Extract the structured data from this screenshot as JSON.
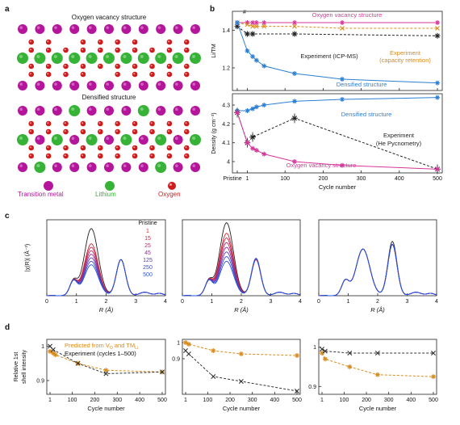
{
  "panels": {
    "a": "a",
    "b": "b",
    "c": "c",
    "d": "d"
  },
  "panel_a": {
    "top_title": "Oxygen vacancy structure",
    "bottom_title": "Densified structure",
    "legend": [
      "Transition metal",
      "Lithium",
      "Oxygen"
    ],
    "colors": {
      "tm": "#b5159a",
      "li": "#36b336",
      "o": "#d11a1a"
    }
  },
  "panel_b": {
    "top_ylabel": "Li/TM",
    "bottom_ylabel": "Density (g cm⁻³)",
    "xlabel": "Cycle number",
    "x_ticks": [
      "Pristine",
      "1",
      "100",
      "200",
      "300",
      "400",
      "500"
    ],
    "top_yticks": [
      "1.4",
      "1.2"
    ],
    "bottom_yticks": [
      "4.3",
      "4.2",
      "4.1",
      "4"
    ],
    "labels": {
      "ovs": "Oxygen vacancy structure",
      "dens": "Densified structure",
      "icp": "Experiment (ICP-MS)",
      "cap1": "Experiment",
      "cap2": "(capacity retention)",
      "he1": "Experiment",
      "he2": "(He Pycnometry)"
    }
  },
  "panel_c": {
    "ylabel": "|χ(R)| (Å⁻³)",
    "xlabel": "R (Å)",
    "x_ticks": [
      "0",
      "1",
      "2",
      "3",
      "4"
    ],
    "legend_title": "Pristine",
    "legend": [
      {
        "name": "1",
        "color": "#d9232d"
      },
      {
        "name": "15",
        "color": "#c8234a"
      },
      {
        "name": "25",
        "color": "#b7286e"
      },
      {
        "name": "45",
        "color": "#8b2f98"
      },
      {
        "name": "125",
        "color": "#5a3bb5"
      },
      {
        "name": "250",
        "color": "#3b4ccc"
      },
      {
        "name": "500",
        "color": "#2255e0"
      }
    ]
  },
  "panel_d": {
    "ylabel1": "Relative 1st",
    "ylabel2": "shell intensity",
    "xlabel": "Cycle number",
    "x_ticks": [
      "1",
      "100",
      "200",
      "300",
      "400",
      "500"
    ],
    "y_ticks": [
      "1",
      "0.9"
    ],
    "legend_pred": "Predicted from V",
    "legend_pred_sub": "O",
    "legend_pred_mid": " and TM",
    "legend_pred_sub2": "Li",
    "legend_exp": "Experiment (cycles 1–500)",
    "colors": {
      "pred": "#d88a1a",
      "exp": "#333333"
    }
  },
  "chart_data": [
    {
      "type": "line",
      "title": "",
      "ylabel": "Li/TM",
      "xlabel": "",
      "ylim": [
        1.08,
        1.5
      ],
      "series": [
        {
          "name": "Oxygen vacancy structure",
          "color": "#d6369b",
          "x": [
            0,
            1,
            15,
            25,
            45,
            125,
            250,
            500
          ],
          "y": [
            1.44,
            1.44,
            1.44,
            1.44,
            1.44,
            1.44,
            1.44,
            1.44
          ]
        },
        {
          "name": "Experiment (capacity retention)",
          "color": "#d88a1a",
          "x": [
            0,
            1,
            15,
            25,
            45,
            125,
            250,
            500
          ],
          "y": [
            1.44,
            1.43,
            1.42,
            1.42,
            1.42,
            1.42,
            1.41,
            1.41
          ]
        },
        {
          "name": "Experiment (ICP-MS)",
          "color": "#222222",
          "x": [
            0,
            1,
            15,
            125,
            500
          ],
          "y": [
            1.42,
            1.38,
            1.38,
            1.38,
            1.37
          ]
        },
        {
          "name": "Densified structure",
          "color": "#2a7fd4",
          "x": [
            0,
            1,
            15,
            25,
            45,
            125,
            250,
            500
          ],
          "y": [
            1.44,
            1.29,
            1.26,
            1.24,
            1.21,
            1.17,
            1.14,
            1.12
          ]
        }
      ]
    },
    {
      "type": "line",
      "title": "",
      "ylabel": "Density (g cm⁻³)",
      "xlabel": "Cycle number",
      "ylim": [
        3.94,
        4.36
      ],
      "xlim": [
        0,
        500
      ],
      "series": [
        {
          "name": "Densified structure",
          "color": "#2a7fd4",
          "x": [
            0,
            1,
            15,
            25,
            45,
            125,
            250,
            500
          ],
          "y": [
            4.27,
            4.27,
            4.28,
            4.29,
            4.3,
            4.32,
            4.33,
            4.34
          ]
        },
        {
          "name": "Experiment (He Pycnometry)",
          "color": "#222222",
          "x": [
            0,
            1,
            15,
            125,
            500
          ],
          "y": [
            4.26,
            4.1,
            4.13,
            4.23,
            3.96
          ]
        },
        {
          "name": "Oxygen vacancy structure",
          "color": "#d6369b",
          "x": [
            0,
            1,
            15,
            25,
            45,
            125,
            250,
            500
          ],
          "y": [
            4.26,
            4.1,
            4.07,
            4.06,
            4.04,
            4.0,
            3.98,
            3.96
          ]
        }
      ]
    },
    {
      "type": "line",
      "title": "",
      "xlabel": "R (Å)",
      "ylabel": "|χ(R)| (Å⁻³)",
      "xlim": [
        0,
        4
      ],
      "series": [
        {
          "name": "Pristine",
          "x": [
            0,
            1.0,
            1.55,
            1.95,
            2.5,
            3.0,
            3.7,
            4.0
          ],
          "y": [
            0,
            0.2,
            1.0,
            0.1,
            0.62,
            0.12,
            0.05,
            0.03
          ]
        }
      ]
    },
    {
      "type": "line",
      "xlabel": "Cycle number",
      "ylabel": "Relative 1st shell intensity",
      "xlim": [
        1,
        500
      ],
      "ylim": [
        0.86,
        1.02
      ],
      "series": [
        {
          "name": "Predicted",
          "color": "#d88a1a",
          "x": [
            1,
            15,
            25,
            125,
            250,
            500
          ],
          "y": [
            0.985,
            0.98,
            0.975,
            0.95,
            0.93,
            0.925
          ]
        },
        {
          "name": "Experiment (cycles 1–500)",
          "color": "#333333",
          "x": [
            1,
            15,
            125,
            250,
            500
          ],
          "y": [
            1.0,
            0.99,
            0.95,
            0.92,
            0.925
          ]
        }
      ]
    },
    {
      "type": "line",
      "xlabel": "Cycle number",
      "xlim": [
        1,
        500
      ],
      "ylim": [
        0.68,
        1.02
      ],
      "series": [
        {
          "name": "Predicted",
          "color": "#d88a1a",
          "x": [
            1,
            15,
            125,
            250,
            500
          ],
          "y": [
            1.0,
            0.99,
            0.95,
            0.93,
            0.92
          ]
        },
        {
          "name": "Experiment",
          "color": "#333333",
          "x": [
            1,
            15,
            125,
            250,
            500
          ],
          "y": [
            0.95,
            0.93,
            0.79,
            0.76,
            0.7
          ]
        }
      ]
    },
    {
      "type": "line",
      "xlabel": "Cycle number",
      "xlim": [
        1,
        500
      ],
      "ylim": [
        0.88,
        1.02
      ],
      "series": [
        {
          "name": "Predicted",
          "color": "#d88a1a",
          "x": [
            1,
            15,
            125,
            250,
            500
          ],
          "y": [
            0.985,
            0.97,
            0.95,
            0.93,
            0.925
          ]
        },
        {
          "name": "Experiment",
          "color": "#333333",
          "x": [
            1,
            15,
            125,
            250,
            500
          ],
          "y": [
            0.995,
            0.99,
            0.985,
            0.985,
            0.985
          ]
        }
      ]
    }
  ]
}
